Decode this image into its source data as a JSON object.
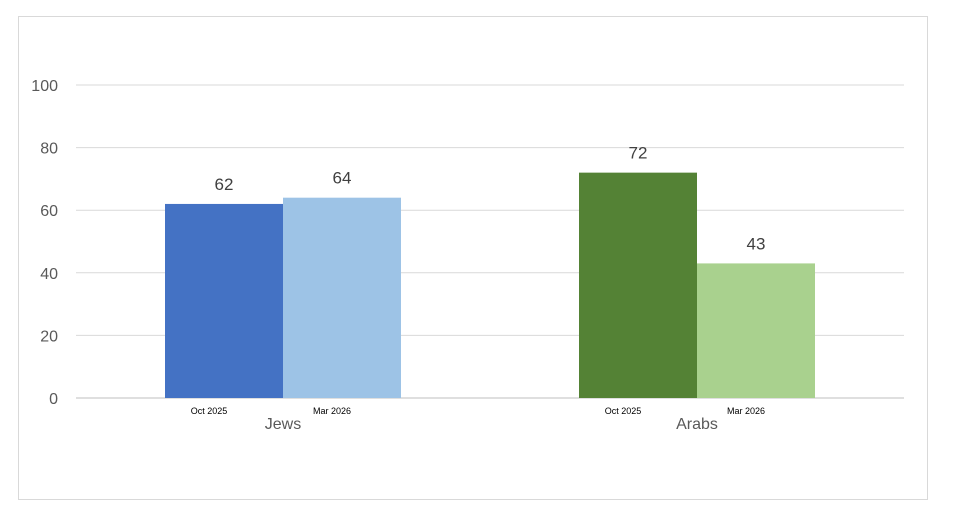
{
  "chart_data": {
    "type": "bar",
    "groups": [
      {
        "name": "Jews",
        "bars": [
          {
            "label": "Oct 2025",
            "value": 62,
            "color": "#4472C4"
          },
          {
            "label": "Mar 2026",
            "value": 64,
            "color": "#9DC3E6"
          }
        ]
      },
      {
        "name": "Arabs",
        "bars": [
          {
            "label": "Oct 2025",
            "value": 72,
            "color": "#548235"
          },
          {
            "label": "Mar 2026",
            "value": 43,
            "color": "#A9D18E"
          }
        ]
      }
    ],
    "ylim": [
      0,
      100
    ],
    "yticks": [
      0,
      20,
      40,
      60,
      80,
      100
    ],
    "grid": true,
    "data_labels": true
  }
}
